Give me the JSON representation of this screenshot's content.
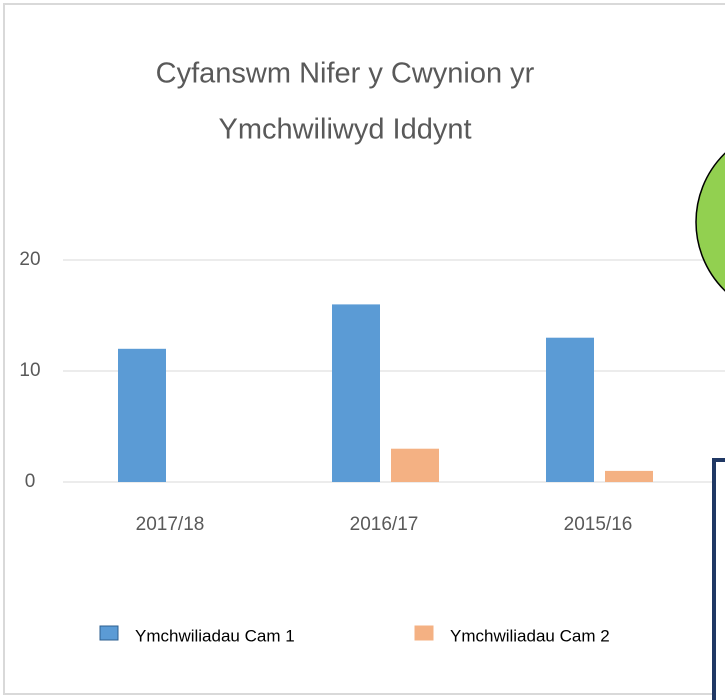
{
  "chart_data": {
    "type": "bar",
    "title": [
      "Cyfanswm Nifer y Cwynion yr",
      "Ymchwiliwyd Iddynt"
    ],
    "categories": [
      "2017/18",
      "2016/17",
      "2015/16"
    ],
    "series": [
      {
        "name": "Ymchwiliadau Cam 1",
        "color": "#5b9bd5",
        "values": [
          12,
          16,
          13
        ]
      },
      {
        "name": "Ymchwiliadau Cam 2",
        "color": "#f4b183",
        "values": [
          0,
          3,
          1
        ]
      }
    ],
    "ylim": [
      0,
      20
    ],
    "yticks": [
      0,
      10,
      20
    ],
    "grid": true,
    "legend": "bottom"
  }
}
